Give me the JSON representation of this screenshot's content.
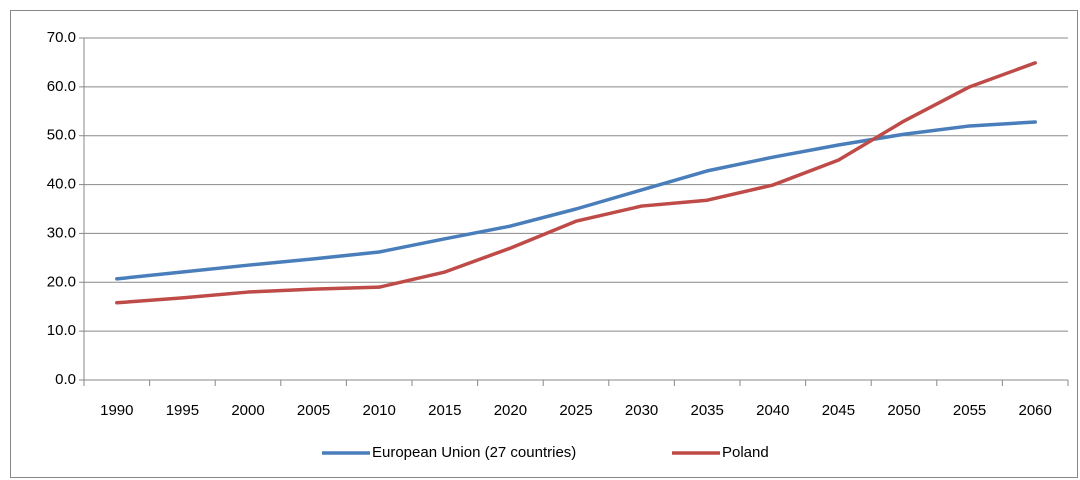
{
  "chart_data": {
    "type": "line",
    "categories": [
      "1990",
      "1995",
      "2000",
      "2005",
      "2010",
      "2015",
      "2020",
      "2025",
      "2030",
      "2035",
      "2040",
      "2045",
      "2050",
      "2055",
      "2060"
    ],
    "series": [
      {
        "name": "European Union (27 countries)",
        "color": "#4a7ebb",
        "values": [
          20.7,
          22.1,
          23.5,
          24.8,
          26.2,
          28.9,
          31.5,
          35.0,
          38.9,
          42.8,
          45.6,
          48.1,
          50.3,
          52.0,
          52.8
        ]
      },
      {
        "name": "Poland",
        "color": "#be4b48",
        "values": [
          15.8,
          16.8,
          18.0,
          18.6,
          19.0,
          22.1,
          27.0,
          32.5,
          35.6,
          36.8,
          39.9,
          45.0,
          53.0,
          60.0,
          64.9
        ]
      }
    ],
    "ylim": [
      0,
      70
    ],
    "yticks": [
      {
        "value": 0,
        "label": "0.0"
      },
      {
        "value": 10,
        "label": "10.0"
      },
      {
        "value": 20,
        "label": "20.0"
      },
      {
        "value": 30,
        "label": "30.0"
      },
      {
        "value": 40,
        "label": "40.0"
      },
      {
        "value": 50,
        "label": "50.0"
      },
      {
        "value": 60,
        "label": "60.0"
      },
      {
        "value": 70,
        "label": "70.0"
      }
    ],
    "grid": true,
    "legend": "bottom"
  }
}
